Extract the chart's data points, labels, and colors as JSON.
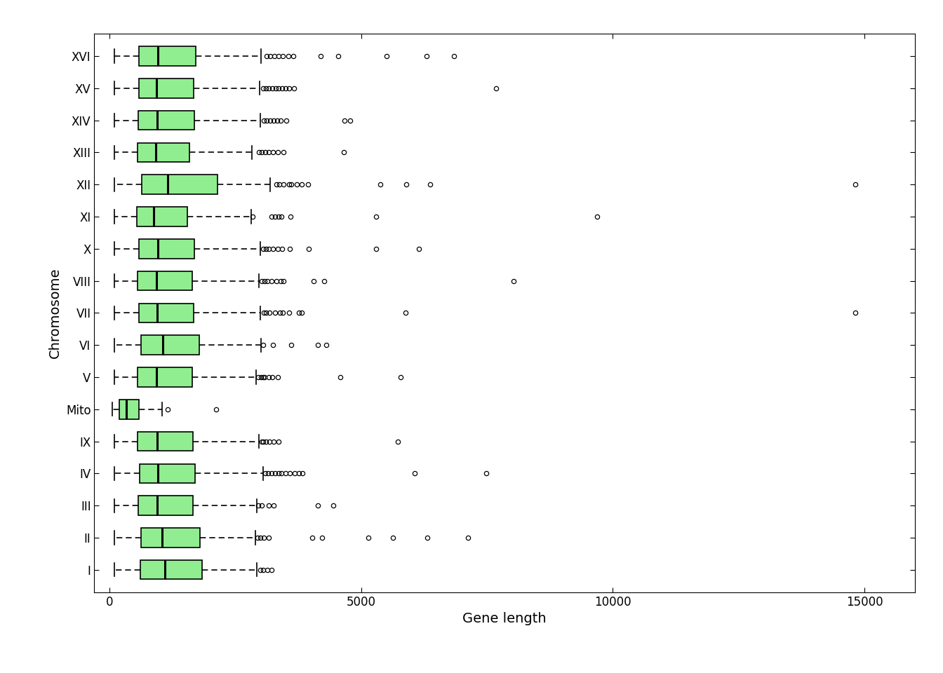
{
  "chromosomes": [
    "XVI",
    "XV",
    "XIV",
    "XIII",
    "XII",
    "XI",
    "X",
    "VIII",
    "VII",
    "VI",
    "V",
    "Mito",
    "IX",
    "IV",
    "III",
    "II",
    "I"
  ],
  "stats": {
    "XVI": {
      "min": 100,
      "q1": 588,
      "median": 966,
      "q3": 1716,
      "max": 3015,
      "outliers": [
        3120,
        3198,
        3276,
        3363,
        3441,
        3549,
        3654,
        4200,
        4548,
        5511,
        6300,
        6840
      ]
    },
    "XV": {
      "min": 100,
      "q1": 582,
      "median": 939,
      "q3": 1680,
      "max": 2985,
      "outliers": [
        3057,
        3111,
        3168,
        3234,
        3300,
        3366,
        3432,
        3507,
        3573,
        3672,
        7689
      ]
    },
    "XIV": {
      "min": 100,
      "q1": 579,
      "median": 945,
      "q3": 1683,
      "max": 2994,
      "outliers": [
        3066,
        3129,
        3192,
        3261,
        3333,
        3402,
        3513,
        4674,
        4779
      ]
    },
    "XIII": {
      "min": 100,
      "q1": 561,
      "median": 924,
      "q3": 1593,
      "max": 2829,
      "outliers": [
        2967,
        3027,
        3090,
        3159,
        3243,
        3348,
        3462,
        4656
      ]
    },
    "XII": {
      "min": 100,
      "q1": 645,
      "median": 1164,
      "q3": 2151,
      "max": 3198,
      "outliers": [
        3324,
        3378,
        3456,
        3567,
        3615,
        3720,
        3825,
        3945,
        5379,
        5901,
        6369,
        14826
      ]
    },
    "XI": {
      "min": 100,
      "q1": 549,
      "median": 885,
      "q3": 1554,
      "max": 2817,
      "outliers": [
        2847,
        3228,
        3297,
        3366,
        3423,
        3591,
        5304,
        9696
      ]
    },
    "X": {
      "min": 100,
      "q1": 591,
      "median": 960,
      "q3": 1692,
      "max": 2994,
      "outliers": [
        3051,
        3114,
        3171,
        3243,
        3348,
        3432,
        3579,
        3966,
        5292,
        6153
      ]
    },
    "VIII": {
      "min": 100,
      "q1": 561,
      "median": 942,
      "q3": 1647,
      "max": 2964,
      "outliers": [
        3021,
        3075,
        3144,
        3228,
        3312,
        3402,
        3456,
        4053,
        4272,
        8037
      ]
    },
    "VII": {
      "min": 100,
      "q1": 588,
      "median": 945,
      "q3": 1674,
      "max": 2997,
      "outliers": [
        3069,
        3108,
        3186,
        3285,
        3384,
        3447,
        3573,
        3759,
        3819,
        5883,
        14826
      ]
    },
    "VI": {
      "min": 100,
      "q1": 624,
      "median": 1059,
      "q3": 1788,
      "max": 3012,
      "outliers": [
        3051,
        3249,
        3612,
        4143,
        4308
      ]
    },
    "V": {
      "min": 100,
      "q1": 564,
      "median": 930,
      "q3": 1650,
      "max": 2916,
      "outliers": [
        2961,
        3006,
        3051,
        3087,
        3162,
        3234,
        3348,
        4590,
        5793
      ]
    },
    "Mito": {
      "min": 51,
      "q1": 198,
      "median": 342,
      "q3": 582,
      "max": 1047,
      "outliers": [
        1164,
        2121
      ]
    },
    "IX": {
      "min": 100,
      "q1": 564,
      "median": 951,
      "q3": 1659,
      "max": 2976,
      "outliers": [
        3024,
        3060,
        3105,
        3177,
        3270,
        3363,
        5733
      ]
    },
    "IV": {
      "min": 100,
      "q1": 594,
      "median": 957,
      "q3": 1695,
      "max": 3060,
      "outliers": [
        3099,
        3150,
        3228,
        3294,
        3354,
        3414,
        3498,
        3588,
        3681,
        3771,
        3828,
        6072,
        7482
      ]
    },
    "III": {
      "min": 100,
      "q1": 576,
      "median": 954,
      "q3": 1659,
      "max": 2925,
      "outliers": [
        2961,
        3030,
        3171,
        3270,
        4140,
        4455
      ]
    },
    "II": {
      "min": 100,
      "q1": 624,
      "median": 1044,
      "q3": 1800,
      "max": 2904,
      "outliers": [
        2940,
        2994,
        3063,
        3168,
        4032,
        4224,
        5148,
        5637,
        6321,
        7131
      ]
    },
    "I": {
      "min": 100,
      "q1": 615,
      "median": 1098,
      "q3": 1842,
      "max": 2922,
      "outliers": [
        2997,
        3060,
        3141,
        3222
      ]
    }
  },
  "box_color": "#90EE90",
  "median_color": "#000000",
  "whisker_color": "#000000",
  "outlier_color": "#000000",
  "xlabel": "Gene length",
  "ylabel": "Chromosome",
  "xlim": [
    -300,
    16000
  ],
  "xticks": [
    0,
    5000,
    10000,
    15000
  ],
  "background_color": "#ffffff",
  "label_fontsize": 14,
  "tick_fontsize": 12
}
